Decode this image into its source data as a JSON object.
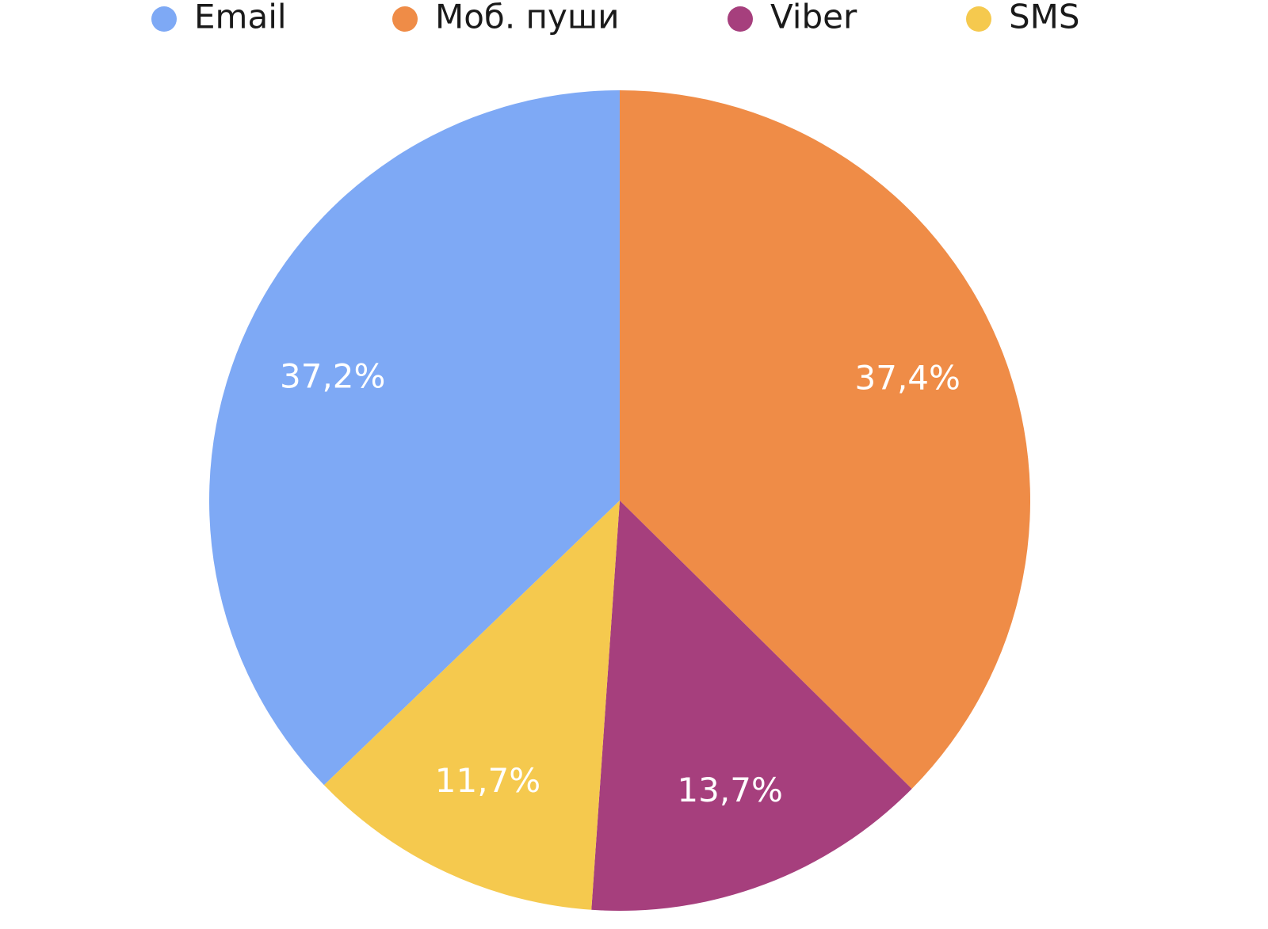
{
  "chart_data": {
    "type": "pie",
    "categories": [
      "Email",
      "Моб. пуши",
      "Viber",
      "SMS"
    ],
    "values": [
      37.2,
      37.4,
      13.7,
      11.7
    ],
    "value_labels": [
      "37,2%",
      "37,4%",
      "13,7%",
      "11,7%"
    ],
    "colors": [
      "#7ea9f5",
      "#ef8c47",
      "#a63f7d",
      "#f5c94e"
    ]
  }
}
